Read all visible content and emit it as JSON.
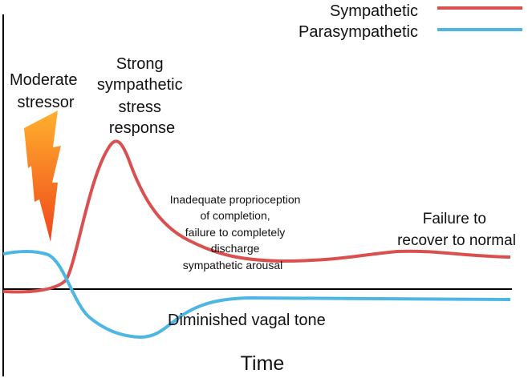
{
  "legend": [
    {
      "label": "Sympathetic",
      "color": "#d9504f"
    },
    {
      "label": "Parasympathetic",
      "color": "#4db6e3"
    }
  ],
  "axis": {
    "x_label": "Time"
  },
  "annotations": {
    "stressor": [
      "Moderate",
      "stressor"
    ],
    "peak": [
      "Strong",
      "sympathetic",
      "stress",
      "response"
    ],
    "proprioception": [
      "Inadequate proprioception",
      "of completion,",
      "failure to completely",
      "discharge",
      "sympathetic arousal"
    ],
    "failure": [
      "Failure to",
      "recover to normal"
    ],
    "vagal": "Diminished vagal tone"
  },
  "icons": {
    "stressor": "lightning-bolt-icon"
  },
  "colors": {
    "axis": "#000000",
    "bolt_top": "#ffb12e",
    "bolt_bottom": "#f0451a"
  }
}
